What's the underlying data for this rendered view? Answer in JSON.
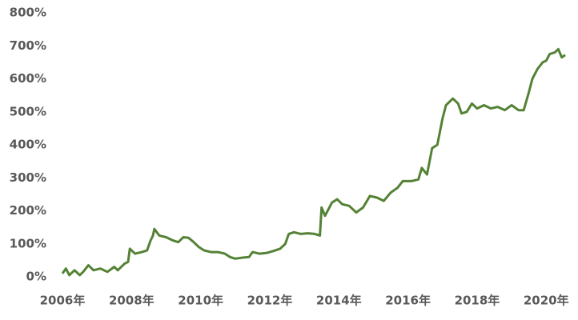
{
  "chart_data": {
    "type": "line",
    "color": "#548235",
    "x": [
      2006.0,
      2006.1,
      2006.2,
      2006.35,
      2006.5,
      2006.6,
      2006.75,
      2006.9,
      2007.1,
      2007.3,
      2007.5,
      2007.6,
      2007.8,
      2007.9,
      2007.95,
      2008.1,
      2008.3,
      2008.45,
      2008.55,
      2008.62,
      2008.66,
      2008.8,
      2009.0,
      2009.2,
      2009.35,
      2009.5,
      2009.65,
      2009.8,
      2009.95,
      2010.1,
      2010.3,
      2010.5,
      2010.7,
      2010.85,
      2011.0,
      2011.2,
      2011.4,
      2011.5,
      2011.7,
      2011.9,
      2012.1,
      2012.3,
      2012.45,
      2012.55,
      2012.7,
      2012.9,
      2013.1,
      2013.3,
      2013.45,
      2013.5,
      2013.6,
      2013.8,
      2013.95,
      2014.1,
      2014.3,
      2014.5,
      2014.7,
      2014.9,
      2015.1,
      2015.3,
      2015.5,
      2015.7,
      2015.85,
      2016.1,
      2016.3,
      2016.4,
      2016.55,
      2016.7,
      2016.85,
      2017.0,
      2017.1,
      2017.3,
      2017.45,
      2017.55,
      2017.7,
      2017.85,
      2018.0,
      2018.2,
      2018.4,
      2018.6,
      2018.8,
      2019.0,
      2019.2,
      2019.35,
      2019.5,
      2019.6,
      2019.75,
      2019.9,
      2020.0,
      2020.1,
      2020.25,
      2020.35,
      2020.45,
      2020.55
    ],
    "values": [
      10,
      25,
      5,
      20,
      5,
      15,
      35,
      20,
      25,
      15,
      30,
      20,
      40,
      45,
      85,
      70,
      75,
      80,
      110,
      125,
      145,
      125,
      120,
      110,
      105,
      120,
      118,
      105,
      90,
      80,
      75,
      75,
      70,
      60,
      55,
      58,
      60,
      75,
      70,
      72,
      78,
      85,
      100,
      130,
      135,
      130,
      132,
      130,
      125,
      210,
      185,
      225,
      235,
      220,
      215,
      195,
      210,
      245,
      240,
      230,
      255,
      270,
      290,
      290,
      295,
      330,
      310,
      390,
      400,
      480,
      520,
      540,
      525,
      495,
      500,
      525,
      510,
      520,
      510,
      515,
      505,
      520,
      505,
      505,
      560,
      600,
      630,
      650,
      655,
      675,
      680,
      690,
      665,
      672
    ],
    "xlim": [
      2006,
      2020.55
    ],
    "xticks": [
      {
        "value": 2006,
        "label": "2006年"
      },
      {
        "value": 2008,
        "label": "2008年"
      },
      {
        "value": 2010,
        "label": "2010年"
      },
      {
        "value": 2012,
        "label": "2012年"
      },
      {
        "value": 2014,
        "label": "2014年"
      },
      {
        "value": 2016,
        "label": "2016年"
      },
      {
        "value": 2018,
        "label": "2018年"
      },
      {
        "value": 2020,
        "label": "2020年"
      }
    ],
    "ylim": [
      0,
      800
    ],
    "yticks": [
      {
        "value": 0,
        "label": "0%"
      },
      {
        "value": 100,
        "label": "100%"
      },
      {
        "value": 200,
        "label": "200%"
      },
      {
        "value": 300,
        "label": "300%"
      },
      {
        "value": 400,
        "label": "400%"
      },
      {
        "value": 500,
        "label": "500%"
      },
      {
        "value": 600,
        "label": "600%"
      },
      {
        "value": 700,
        "label": "700%"
      },
      {
        "value": 800,
        "label": "800%"
      }
    ],
    "grid": false
  }
}
